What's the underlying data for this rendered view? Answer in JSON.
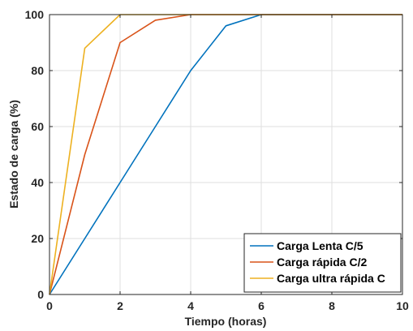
{
  "chart_data": {
    "type": "line",
    "title": "",
    "xlabel": "Tiempo (horas)",
    "ylabel": "Estado de carga (%)",
    "xlim": [
      0,
      10
    ],
    "ylim": [
      0,
      100
    ],
    "xticks": [
      "0",
      "2",
      "4",
      "6",
      "8",
      "10"
    ],
    "yticks": [
      "0",
      "20",
      "40",
      "60",
      "80",
      "100"
    ],
    "grid": true,
    "legend_position": "bottom-right",
    "series": [
      {
        "name": "Carga Lenta C/5",
        "color": "#0072BD",
        "x": [
          0,
          1,
          2,
          3,
          4,
          5,
          6,
          7,
          8,
          9,
          10
        ],
        "y": [
          0,
          20,
          40,
          60,
          80,
          96,
          100,
          100,
          100,
          100,
          100
        ]
      },
      {
        "name": "Carga rápida C/2",
        "color": "#D95319",
        "x": [
          0,
          1,
          2,
          3,
          4,
          5,
          6,
          7,
          8,
          9,
          10
        ],
        "y": [
          0,
          50,
          90,
          98,
          100,
          100,
          100,
          100,
          100,
          100,
          100
        ]
      },
      {
        "name": "Carga ultra rápida C",
        "color": "#EDB120",
        "x": [
          0,
          1,
          2,
          3,
          4,
          5,
          6,
          7,
          8,
          9,
          10
        ],
        "y": [
          0,
          88,
          100,
          100,
          100,
          100,
          100,
          100,
          100,
          100,
          100
        ]
      }
    ]
  }
}
